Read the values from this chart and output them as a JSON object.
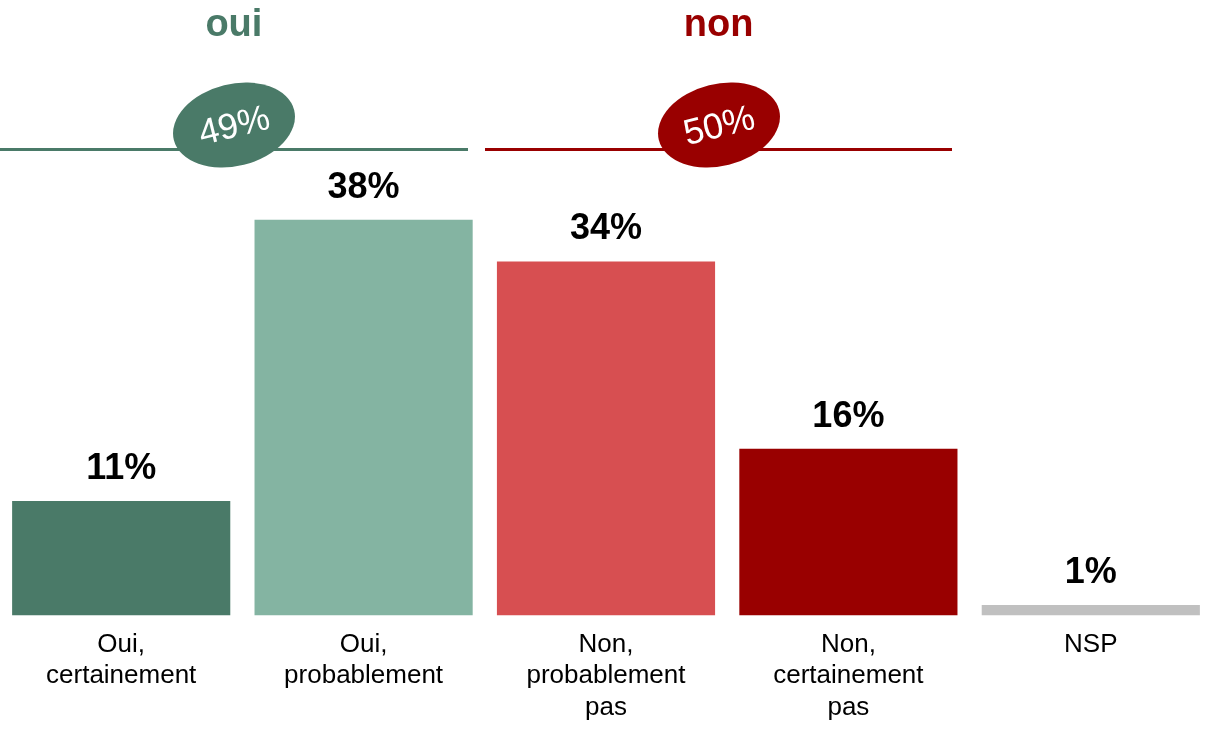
{
  "chart_data": {
    "type": "bar",
    "categories": [
      "Oui, certainement",
      "Oui, probablement",
      "Non, probablement pas",
      "Non, certainement pas",
      "NSP"
    ],
    "values": [
      11,
      38,
      34,
      16,
      1
    ],
    "colors": [
      "#4a7a68",
      "#84b4a2",
      "#d74f51",
      "#990000",
      "#c0c0c0"
    ],
    "value_labels": [
      "11%",
      "38%",
      "34%",
      "16%",
      "1%"
    ],
    "tick_labels": "x",
    "annotations": [
      "oui",
      "49%",
      "non",
      "50%"
    ],
    "grid": false,
    "legend": false
  }
}
